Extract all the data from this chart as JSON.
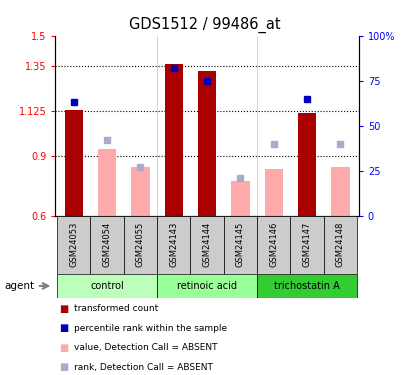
{
  "title": "GDS1512 / 99486_at",
  "samples": [
    "GSM24053",
    "GSM24054",
    "GSM24055",
    "GSM24143",
    "GSM24144",
    "GSM24145",
    "GSM24146",
    "GSM24147",
    "GSM24148"
  ],
  "groups_info": [
    {
      "label": "control",
      "indices": [
        0,
        1,
        2
      ],
      "color": "#bbffbb"
    },
    {
      "label": "retinoic acid",
      "indices": [
        3,
        4,
        5
      ],
      "color": "#99ff99"
    },
    {
      "label": "trichostatin A",
      "indices": [
        6,
        7,
        8
      ],
      "color": "#33cc33"
    }
  ],
  "red_bar_values": [
    1.13,
    null,
    null,
    1.36,
    1.325,
    null,
    null,
    1.115,
    null
  ],
  "pink_bar_values": [
    null,
    0.935,
    0.845,
    null,
    null,
    0.775,
    0.835,
    null,
    0.845
  ],
  "blue_sq_pct": [
    63,
    null,
    null,
    82,
    75,
    null,
    null,
    65,
    null
  ],
  "lblue_sq_pct": [
    null,
    42,
    27,
    null,
    null,
    21,
    40,
    null,
    40
  ],
  "ylim_left": [
    0.6,
    1.5
  ],
  "ylim_right": [
    0,
    100
  ],
  "yticks_left": [
    0.6,
    0.9,
    1.125,
    1.35,
    1.5
  ],
  "ytlabels_left": [
    "0.6",
    "0.9",
    "1.125",
    "1.35",
    "1.5"
  ],
  "yticks_right": [
    0,
    25,
    50,
    75,
    100
  ],
  "ytlabels_right": [
    "0",
    "25",
    "50",
    "75",
    "100%"
  ],
  "hlines": [
    0.9,
    1.125,
    1.35
  ],
  "bar_width": 0.55,
  "bar_bottom": 0.6,
  "red_color": "#aa0000",
  "pink_color": "#ffaaaa",
  "blue_color": "#0000bb",
  "lblue_color": "#aaaacc",
  "sample_bg": "#cccccc",
  "legend_items": [
    {
      "color": "#aa0000",
      "label": "transformed count"
    },
    {
      "color": "#0000bb",
      "label": "percentile rank within the sample"
    },
    {
      "color": "#ffaaaa",
      "label": "value, Detection Call = ABSENT"
    },
    {
      "color": "#aaaacc",
      "label": "rank, Detection Call = ABSENT"
    }
  ]
}
